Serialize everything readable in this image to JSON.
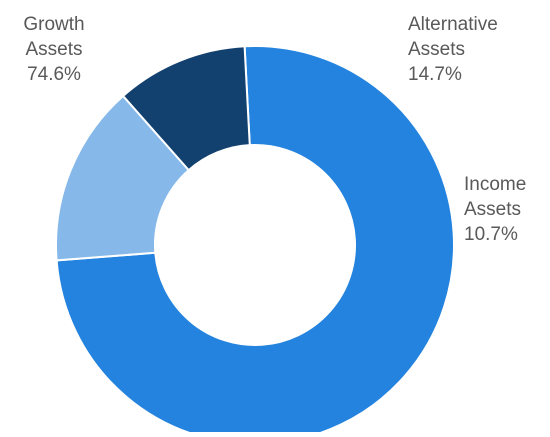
{
  "chart_data": {
    "type": "pie",
    "donut": true,
    "title": "",
    "slices": [
      {
        "name_line1": "Growth",
        "name_line2": "Assets",
        "value": 74.6,
        "value_label": "74.6%",
        "color": "#2383de"
      },
      {
        "name_line1": "Alternative",
        "name_line2": "Assets",
        "value": 14.7,
        "value_label": "14.7%",
        "color": "#86b9ea"
      },
      {
        "name_line1": "Income",
        "name_line2": "Assets",
        "value": 10.7,
        "value_label": "10.7%",
        "color": "#13416f"
      }
    ],
    "start_angle_deg": -3,
    "direction": "clockwise",
    "legend": "none",
    "label_color": "#595959"
  }
}
